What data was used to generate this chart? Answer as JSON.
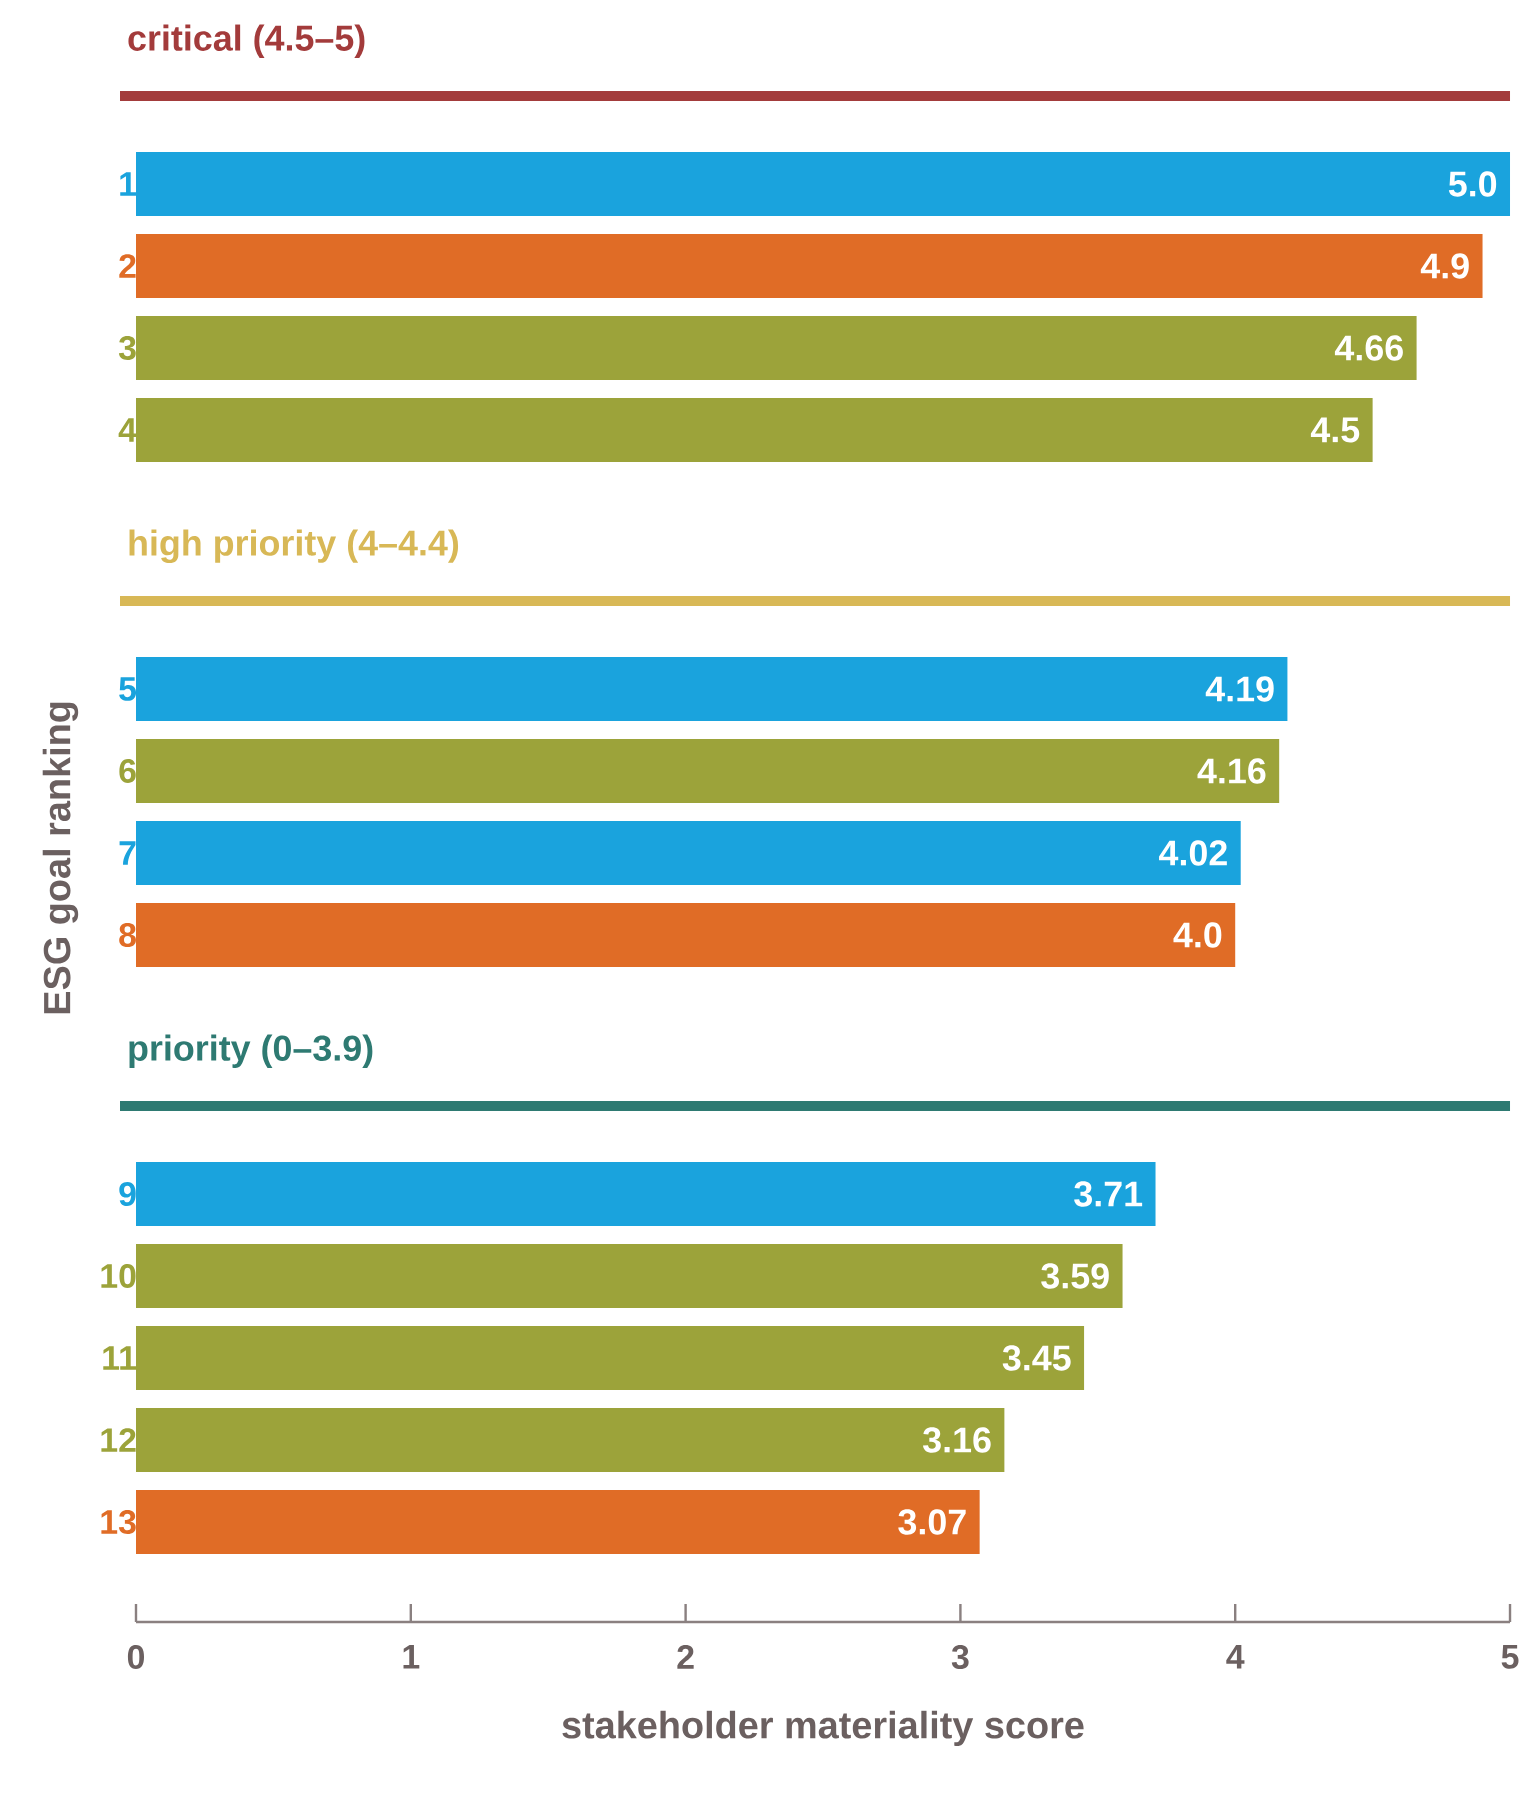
{
  "chart_data": [
    {
      "type": "bar",
      "orientation": "horizontal",
      "title": "critical (4.5–5)",
      "categories": [
        "1",
        "2",
        "3",
        "4"
      ],
      "values": [
        5.0,
        4.9,
        4.66,
        4.5
      ],
      "value_labels": [
        "5.0",
        "4.9",
        "4.66",
        "4.5"
      ],
      "colors": [
        "#1aa3dd",
        "#e06c26",
        "#9ca33a",
        "#9ca33a"
      ],
      "xlim": [
        0,
        5
      ],
      "tick_labels": "y"
    },
    {
      "type": "bar",
      "orientation": "horizontal",
      "title": "high priority (4–4.4)",
      "ylabel": "ESG goal ranking",
      "categories": [
        "5",
        "6",
        "7",
        "8"
      ],
      "values": [
        4.19,
        4.16,
        4.02,
        4.0
      ],
      "value_labels": [
        "4.19",
        "4.16",
        "4.02",
        "4.0"
      ],
      "colors": [
        "#1aa3dd",
        "#9ca33a",
        "#1aa3dd",
        "#e06c26"
      ],
      "xlim": [
        0,
        5
      ],
      "tick_labels": "y"
    },
    {
      "type": "bar",
      "orientation": "horizontal",
      "title": "priority (0–3.9)",
      "xlabel": "stakeholder materiality score",
      "categories": [
        "9",
        "10",
        "11",
        "12",
        "13"
      ],
      "values": [
        3.71,
        3.59,
        3.45,
        3.16,
        3.07
      ],
      "value_labels": [
        "3.71",
        "3.59",
        "3.45",
        "3.16",
        "3.07"
      ],
      "colors": [
        "#1aa3dd",
        "#9ca33a",
        "#9ca33a",
        "#9ca33a",
        "#e06c26"
      ],
      "xlim": [
        0,
        5
      ],
      "xticks": [
        0,
        1,
        2,
        3,
        4,
        5
      ]
    }
  ]
}
